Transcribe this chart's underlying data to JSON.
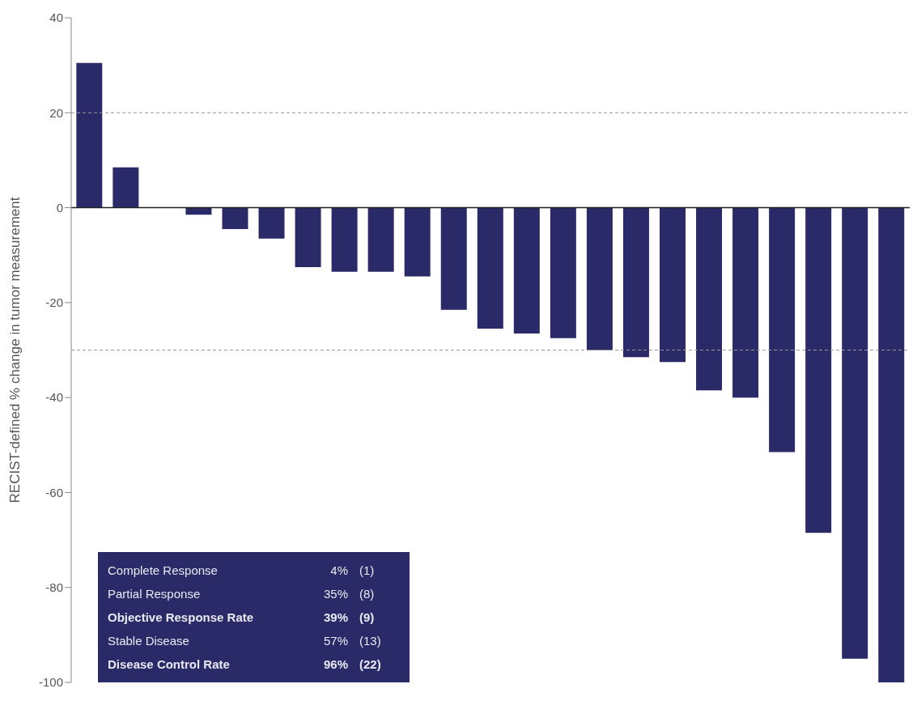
{
  "chart_data": {
    "type": "bar",
    "ylabel": "RECIST-defined % change in tumor measurement",
    "categories": [
      null,
      null,
      null,
      null,
      null,
      null,
      null,
      null,
      null,
      null,
      null,
      null,
      null,
      null,
      null,
      null,
      null,
      null,
      null,
      null,
      null,
      null,
      null
    ],
    "values": [
      30.5,
      8.5,
      0,
      -1.5,
      -4.5,
      -6.5,
      -12.5,
      -13.5,
      -13.5,
      -14.5,
      -21.5,
      -25.5,
      -26.5,
      -27.5,
      -30,
      -31.5,
      -32.5,
      -38.5,
      -40,
      -51.5,
      -68.5,
      -95,
      -100
    ],
    "color": "#2b2a68",
    "ylim": [
      -100,
      40
    ],
    "yticks": [
      -100,
      -80,
      -60,
      -40,
      -20,
      0,
      20,
      40
    ],
    "grid": false,
    "legend": false,
    "ref_lines": [
      {
        "axis": "y",
        "value": 20,
        "color": "#999999",
        "line_style": "dashed"
      },
      {
        "axis": "y",
        "value": -30,
        "color": "#999999",
        "line_style": "dashed"
      }
    ],
    "annotations": [
      "Complete Response",
      "4%",
      "(1)",
      "Partial Response",
      "35%",
      "(8)",
      "Objective Response Rate",
      "39%",
      "(9)",
      "Stable Disease",
      "57%",
      "(13)",
      "Disease Control Rate",
      "96%",
      "(22)"
    ]
  }
}
